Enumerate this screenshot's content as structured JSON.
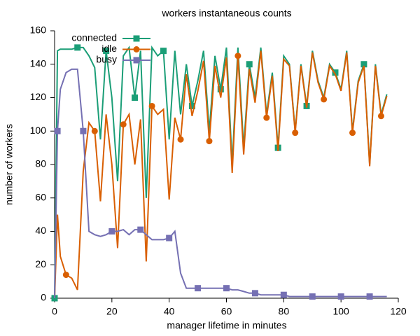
{
  "chart_data": {
    "type": "line",
    "title": "workers instantaneous counts",
    "x_label": "manager lifetime in minutes",
    "y_label": "number of workers",
    "x": [
      0,
      1,
      2,
      4,
      6,
      8,
      10,
      12,
      14,
      16,
      18,
      20,
      22,
      24,
      26,
      28,
      30,
      32,
      34,
      36,
      38,
      40,
      42,
      44,
      46,
      48,
      50,
      52,
      54,
      56,
      58,
      60,
      62,
      64,
      66,
      68,
      70,
      72,
      74,
      76,
      78,
      80,
      82,
      84,
      86,
      88,
      90,
      92,
      94,
      96,
      98,
      100,
      102,
      104,
      106,
      108,
      110,
      112,
      114,
      116
    ],
    "series": [
      {
        "name": "connected",
        "color": "#1b9e77",
        "marker": "square",
        "values": [
          0,
          148,
          149,
          149,
          149,
          150,
          150,
          145,
          138,
          95,
          148,
          120,
          70,
          145,
          150,
          120,
          148,
          60,
          150,
          145,
          148,
          95,
          148,
          110,
          140,
          115,
          130,
          148,
          100,
          145,
          125,
          150,
          80,
          150,
          90,
          140,
          120,
          150,
          110,
          135,
          90,
          145,
          140,
          100,
          140,
          115,
          148,
          130,
          120,
          140,
          135,
          125,
          148,
          100,
          130,
          140,
          80,
          140,
          110,
          122
        ]
      },
      {
        "name": "idle",
        "color": "#d95f02",
        "marker": "circle",
        "values": [
          0,
          50,
          25,
          14,
          12,
          5,
          76,
          105,
          100,
          58,
          110,
          80,
          30,
          104,
          110,
          80,
          107,
          22,
          115,
          110,
          113,
          59,
          108,
          95,
          134,
          109,
          124,
          142,
          94,
          139,
          120,
          144,
          75,
          145,
          86,
          137,
          117,
          148,
          108,
          133,
          88,
          143,
          139,
          99,
          139,
          114,
          147,
          129,
          119,
          139,
          134,
          124,
          147,
          99,
          129,
          139,
          79,
          139,
          109,
          121
        ]
      },
      {
        "name": "busy",
        "color": "#7570b3",
        "marker": "square",
        "values": [
          0,
          100,
          125,
          135,
          137,
          137,
          100,
          40,
          38,
          37,
          38,
          40,
          40,
          41,
          38,
          41,
          41,
          38,
          35,
          35,
          35,
          36,
          40,
          15,
          6,
          6,
          6,
          6,
          6,
          6,
          6,
          6,
          5,
          5,
          4,
          3,
          3,
          2,
          2,
          2,
          2,
          2,
          1,
          1,
          1,
          1,
          1,
          1,
          1,
          1,
          1,
          1,
          1,
          1,
          1,
          1,
          1,
          1,
          1,
          1
        ]
      }
    ],
    "xlim": [
      0,
      120
    ],
    "xticks": [
      0,
      20,
      40,
      60,
      80,
      100,
      120
    ],
    "ylim": [
      0,
      160
    ],
    "yticks": [
      0,
      20,
      40,
      60,
      80,
      100,
      120,
      140,
      160
    ]
  }
}
